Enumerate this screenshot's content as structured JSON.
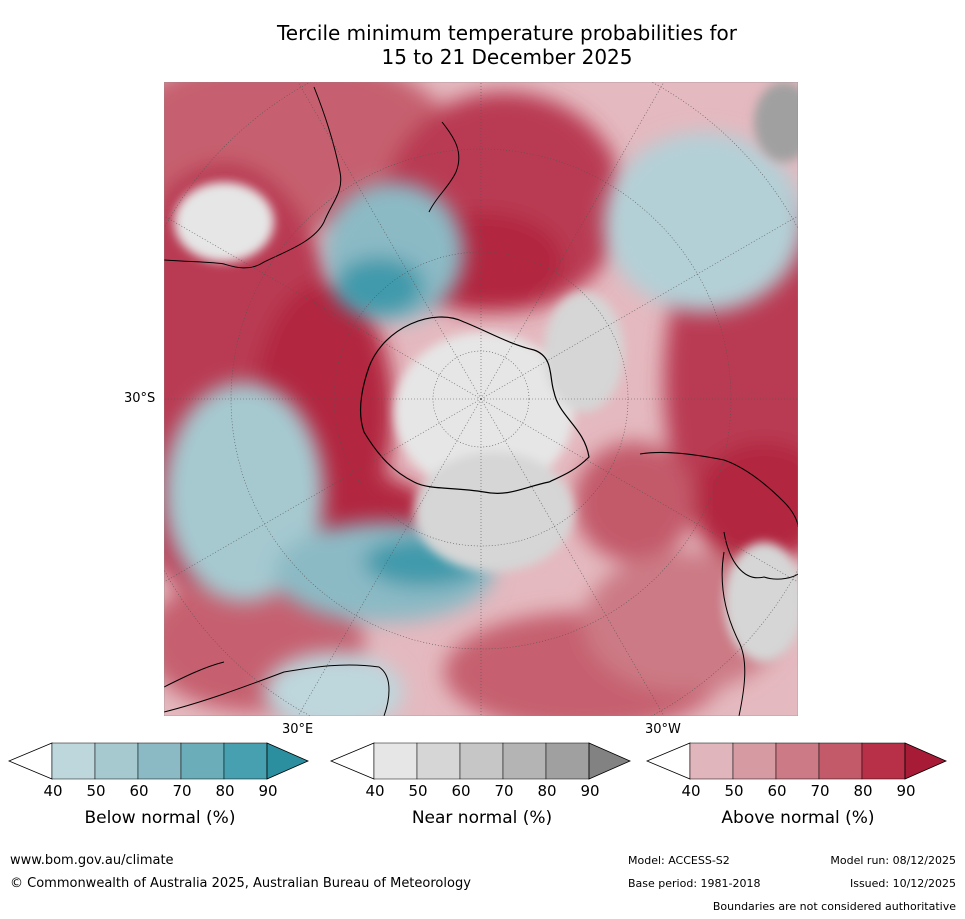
{
  "title": {
    "line1": "Tercile minimum temperature probabilities for",
    "line2": "15 to 21 December 2025"
  },
  "map": {
    "projection": "south-polar-stereographic",
    "lat_label": "30°S",
    "lon_label_east": "30°E",
    "lon_label_west": "30°W"
  },
  "colorbars": [
    {
      "name": "below",
      "label": "Below normal (%)",
      "ticks": [
        "40",
        "50",
        "60",
        "70",
        "80",
        "90"
      ],
      "colors": [
        "#ffffff",
        "#bdd7dd",
        "#a6c9d0",
        "#8bbac5",
        "#6badb8",
        "#46a0af",
        "#2b8f9f"
      ]
    },
    {
      "name": "near",
      "label": "Near normal (%)",
      "ticks": [
        "40",
        "50",
        "60",
        "70",
        "80",
        "90"
      ],
      "colors": [
        "#ffffff",
        "#e6e6e6",
        "#d6d6d6",
        "#c6c6c6",
        "#b4b4b4",
        "#a0a0a0",
        "#828282"
      ]
    },
    {
      "name": "above",
      "label": "Above normal (%)",
      "ticks": [
        "40",
        "50",
        "60",
        "70",
        "80",
        "90"
      ],
      "colors": [
        "#ffffff",
        "#e0b6bc",
        "#d69aa2",
        "#cc7a85",
        "#c35a6a",
        "#b83048",
        "#a81b36"
      ]
    }
  ],
  "footer": {
    "website": "www.bom.gov.au/climate",
    "copyright": "© Commonwealth of Australia 2025, Australian Bureau of Meteorology",
    "model": "Model: ACCESS-S2",
    "base_period": "Base period: 1981-2018",
    "model_run": "Model run: 08/12/2025",
    "issued": "Issued: 10/12/2025",
    "disclaimer": "Boundaries are not considered authoritative"
  }
}
